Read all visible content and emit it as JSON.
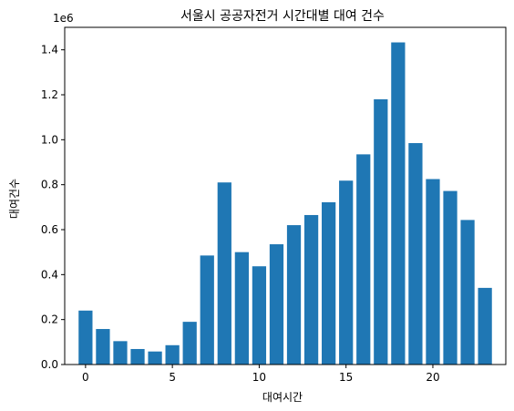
{
  "chart_data": {
    "type": "bar",
    "title": "서울시 공공자전거 시간대별 대여 건수",
    "xlabel": "대여시간",
    "ylabel": "대여건수",
    "y_offset_label": "1e6",
    "x": [
      0,
      1,
      2,
      3,
      4,
      5,
      6,
      7,
      8,
      9,
      10,
      11,
      12,
      13,
      14,
      15,
      16,
      17,
      18,
      19,
      20,
      21,
      22,
      23
    ],
    "values": [
      240000,
      158000,
      104000,
      69000,
      58000,
      86000,
      190000,
      485000,
      810000,
      500000,
      437000,
      535000,
      620000,
      665000,
      722000,
      818000,
      935000,
      1180000,
      1433000,
      985000,
      825000,
      772000,
      643000,
      341000
    ],
    "xlim": [
      -1.2,
      24.2
    ],
    "ylim": [
      0,
      1500000
    ],
    "xticks": [
      0,
      5,
      10,
      15,
      20
    ],
    "xtick_labels": [
      "0",
      "5",
      "10",
      "15",
      "20"
    ],
    "yticks": [
      0,
      200000,
      400000,
      600000,
      800000,
      1000000,
      1200000,
      1400000
    ],
    "ytick_labels": [
      "0.0",
      "0.2",
      "0.4",
      "0.6",
      "0.8",
      "1.0",
      "1.2",
      "1.4"
    ],
    "bar_color": "#1f77b4",
    "grid": false
  }
}
